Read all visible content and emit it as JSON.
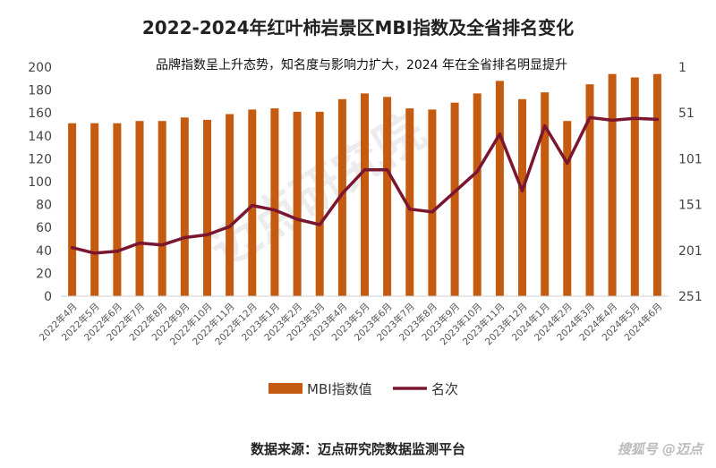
{
  "title": "2022-2024年红叶柿岩景区MBI指数及全省排名变化",
  "subtitle": "品牌指数呈上升态势，知名度与影响力扩大，2024 年在全省排名明显提升",
  "source": "数据来源：迈点研究院数据监测平台",
  "brand": "搜狐号 @迈点",
  "watermark": "迈点研究院",
  "colors": {
    "bar": "#C55A11",
    "line": "#7B1630"
  },
  "chart_data": {
    "type": "bar",
    "title": "2022-2024年红叶柿岩景区MBI指数及全省排名变化",
    "subtitle": "品牌指数呈上升态势，知名度与影响力扩大，2024 年在全省排名明显提升",
    "categories": [
      "2022年4月",
      "2022年5月",
      "2022年6月",
      "2022年7月",
      "2022年8月",
      "2022年9月",
      "2022年10月",
      "2022年11月",
      "2022年12月",
      "2023年1月",
      "2023年2月",
      "2023年3月",
      "2023年4月",
      "2023年5月",
      "2023年6月",
      "2023年7月",
      "2023年8月",
      "2023年9月",
      "2023年10月",
      "2023年11月",
      "2023年12月",
      "2024年1月",
      "2024年2月",
      "2024年3月",
      "2024年4月",
      "2024年5月",
      "2024年6月"
    ],
    "series": [
      {
        "name": "MBI指数值",
        "type": "bar",
        "axis": "left",
        "values": [
          151,
          151,
          151,
          153,
          153,
          156,
          154,
          159,
          163,
          164,
          161,
          161,
          172,
          177,
          174,
          164,
          163,
          169,
          177,
          188,
          172,
          178,
          153,
          185,
          194,
          191,
          194
        ]
      },
      {
        "name": "名次",
        "type": "line",
        "axis": "right",
        "values": [
          198,
          204,
          202,
          193,
          195,
          187,
          184,
          175,
          152,
          157,
          167,
          173,
          139,
          113,
          113,
          156,
          159,
          137,
          115,
          74,
          136,
          65,
          106,
          56,
          59,
          57,
          58
        ]
      }
    ],
    "left_axis": {
      "ylim": [
        0,
        200
      ],
      "ticks": [
        0,
        20,
        40,
        60,
        80,
        100,
        120,
        140,
        160,
        180,
        200
      ]
    },
    "right_axis": {
      "ylim": [
        1,
        251
      ],
      "inverted": true,
      "ticks": [
        1,
        51,
        101,
        151,
        201,
        251
      ]
    },
    "legend": {
      "position": "bottom",
      "entries": [
        "MBI指数值",
        "名次"
      ]
    },
    "grid": false
  }
}
